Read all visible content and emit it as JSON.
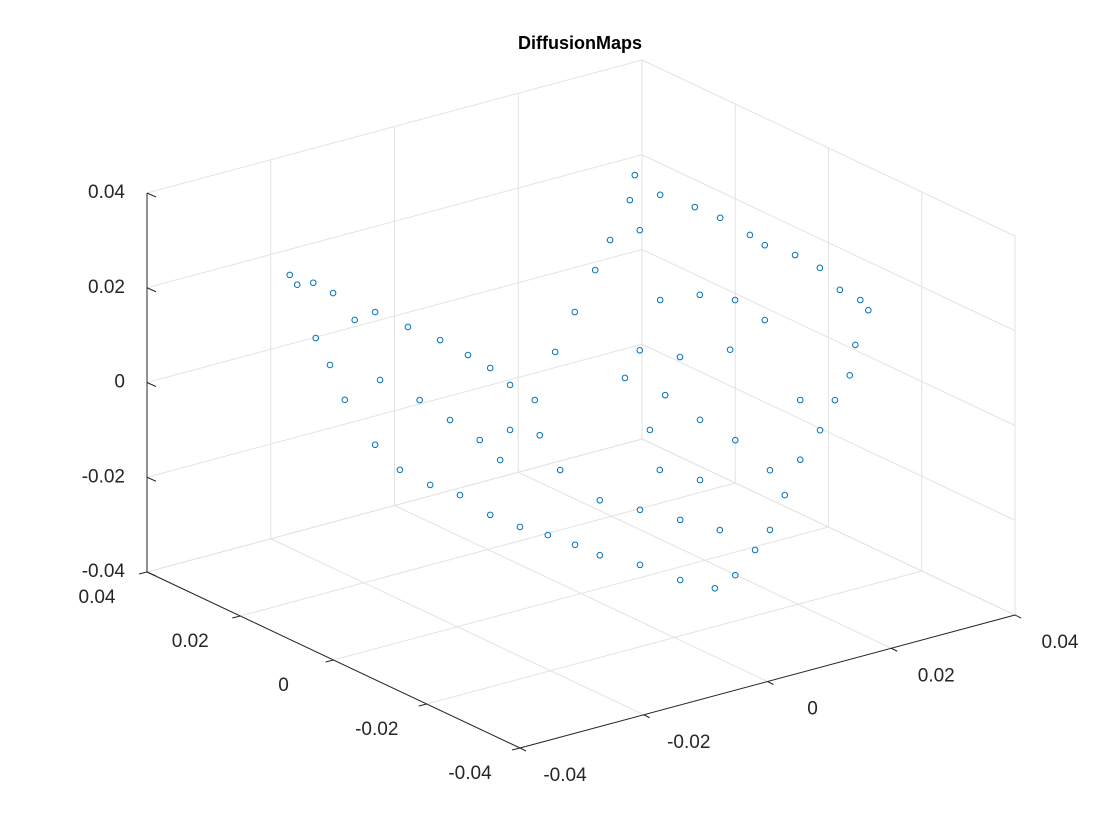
{
  "chart_data": {
    "type": "scatter3d",
    "title": "DiffusionMaps",
    "color": "#0072bd",
    "grid": true,
    "xlim": [
      -0.04,
      0.04
    ],
    "ylim": [
      -0.04,
      0.04
    ],
    "zlim": [
      -0.04,
      0.04
    ],
    "xticks": [
      -0.04,
      -0.02,
      0,
      0.02,
      0.04
    ],
    "yticks": [
      -0.04,
      -0.02,
      0,
      0.02,
      0.04
    ],
    "zticks": [
      -0.04,
      -0.02,
      0,
      0.02,
      0.04
    ],
    "x": [
      -0.032,
      -0.0308,
      -0.0282,
      -0.025,
      -0.0215,
      -0.0182,
      -0.0129,
      -0.0077,
      -0.0278,
      -0.0255,
      -0.0231,
      -0.0182,
      -0.0142,
      -0.0093,
      -0.0174,
      -0.011,
      -0.0145,
      -0.0109,
      -0.0077,
      -0.0037,
      -0.0004,
      -0.0158,
      -0.0109,
      -0.0174,
      -0.0126,
      -0.0077,
      -0.0029,
      -0.0093,
      0.0004,
      -0.0174,
      -0.0129,
      -0.0085,
      -0.0045,
      0.002,
      0.0085,
      0.0141,
      -0.0045,
      0.002,
      0.0085,
      0.0149,
      0.0174,
      0.0206,
      0.023,
      0.0254,
      0.0279,
      0.0311,
      0.0335,
      0.0359,
      0.0368,
      0.0389,
      0.0376,
      0.0343,
      0.0117,
      0.023,
      0.0279,
      0.0174,
      0.0052,
      0.0117,
      0.0036,
      0.0386,
      0.0346,
      0.0297,
      0.0273,
      0.0297,
      0.0249,
      0.0241,
      0.016,
      0.0136,
      0.0071,
      0.0095,
      0.0192,
      0.0225,
      0.0184,
      0.0313,
      0.0305,
      0.0273,
      0.0249,
      0.0216,
      0.0354,
      0.0354,
      0.0321
    ],
    "y": [
      0.02,
      0.02,
      0.02,
      0.02,
      0.02,
      0.02,
      0.02,
      0.02,
      0.02,
      0.02,
      0.02,
      0.02,
      0.02,
      0.02,
      0.02,
      0.02,
      0.005,
      0.005,
      0.005,
      0.005,
      0.005,
      0.005,
      0.005,
      0.005,
      0.005,
      0.005,
      0.005,
      0.005,
      0.005,
      -0.01,
      -0.01,
      -0.01,
      -0.01,
      -0.01,
      -0.01,
      -0.01,
      -0.01,
      -0.01,
      -0.01,
      -0.01,
      -0.01,
      -0.01,
      -0.01,
      -0.01,
      -0.01,
      -0.01,
      -0.01,
      -0.01,
      -0.01,
      -0.01,
      -0.01,
      -0.01,
      -0.01,
      -0.01,
      -0.01,
      -0.01,
      -0.01,
      -0.01,
      -0.01,
      0,
      0,
      0,
      0,
      0,
      0,
      0,
      0,
      0,
      0,
      0,
      0,
      0,
      0,
      0.03,
      0.03,
      0.03,
      0.03,
      0.03,
      0.03,
      0.03,
      0.03
    ],
    "z": [
      0.0292,
      0.0267,
      0.0262,
      0.0229,
      0.016,
      0.0165,
      0.0115,
      0.0069,
      0.0144,
      0.0079,
      -0.0003,
      -0.0115,
      -0.0182,
      -0.0231,
      0.0019,
      -0.0046,
      0.0131,
      0.0091,
      0.0044,
      -0.0002,
      0.0088,
      -0.016,
      -0.0219,
      0.0004,
      -0.0055,
      -0.0051,
      -0.0079,
      -0.0109,
      -0.0164,
      -0.0152,
      -0.0185,
      -0.0221,
      -0.0257,
      -0.03,
      -0.0355,
      -0.0392,
      -0.0141,
      -0.0184,
      -0.0228,
      -0.0272,
      -0.0376,
      -0.0334,
      -0.03,
      -0.0235,
      -0.0169,
      -0.0118,
      -0.0063,
      -0.0019,
      0.0042,
      0.0108,
      0.0134,
      0.0167,
      -0.0155,
      -0.0174,
      -0.0043,
      -0.0091,
      -0.0111,
      -0.0028,
      -0.0021,
      0.0152,
      0.0193,
      0.0231,
      0.0261,
      0.0073,
      0.0132,
      0.003,
      0.0043,
      -0.0029,
      0.003,
      0.008,
      0.0163,
      0.0314,
      0.0351,
      0.0234,
      0.0184,
      0.0111,
      0.0056,
      -0.0021,
      0.0178,
      -0.0044,
      0.0115
    ]
  }
}
